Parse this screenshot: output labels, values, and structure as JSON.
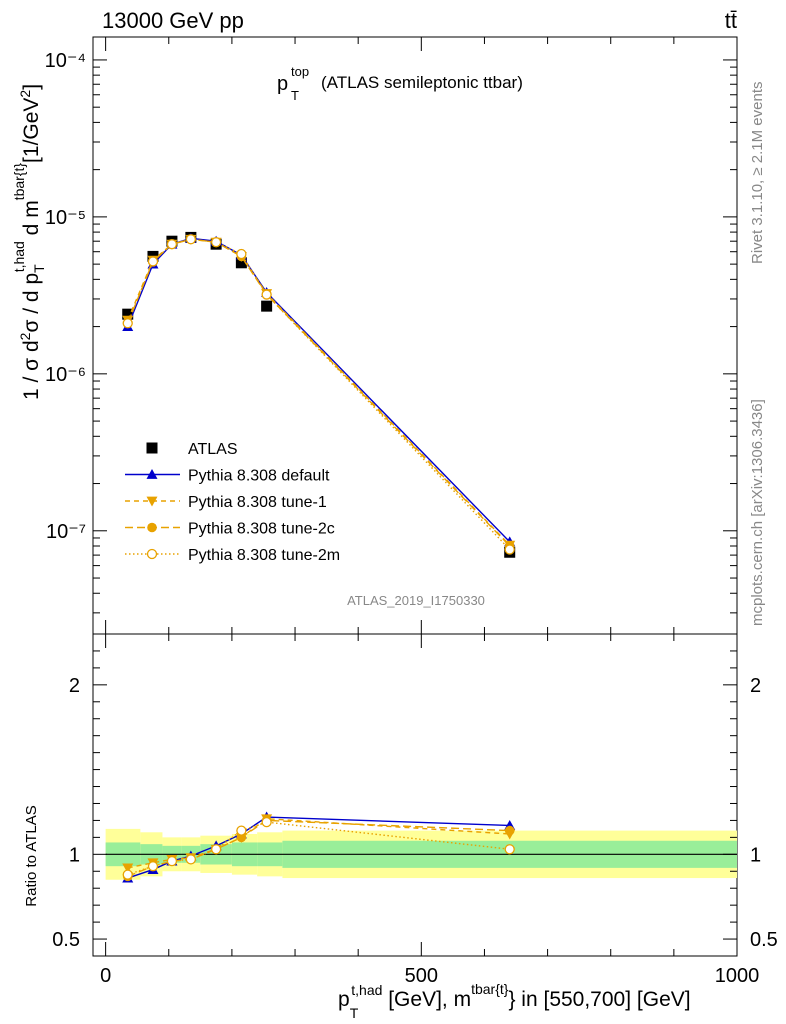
{
  "header": {
    "left": "13000 GeV pp",
    "right": "tt̄"
  },
  "side": {
    "rivet": "Rivet 3.1.10, ≥ 2.1M events",
    "mcplots": "mcplots.cern.ch [arXiv:1306.3436]"
  },
  "plot_title": {
    "base": "p",
    "sup": "top",
    "sub": "T",
    "rest": "(ATLAS semileptonic ttbar)"
  },
  "watermark": "ATLAS_2019_I1750330",
  "ylabel_top": "1 / σ d²σ / d p_T^{t,had} d m^{tbar{t}} [1/GeV²]",
  "ylabel_bottom": "Ratio to ATLAS",
  "xlabel": "p_T^{t,had} [GeV], m^{tbar{t}} in [550,700] [GeV]",
  "colors": {
    "data": "#000000",
    "default": "#0000cc",
    "tune": "#e8a200",
    "band_inner": "#99ee99",
    "band_outer": "#ffff99"
  },
  "chart_data": [
    {
      "type": "line",
      "yscale": "log",
      "xlim": [
        -20,
        1000
      ],
      "ylim": [
        2.2e-08,
        0.00014
      ],
      "y_tick_labels": [
        "10⁻⁷",
        "10⁻⁶",
        "10⁻⁵",
        "10⁻⁴"
      ],
      "x": [
        35,
        75,
        105,
        135,
        175,
        215,
        255,
        640
      ],
      "series": [
        {
          "name": "ATLAS",
          "marker": "square",
          "values": [
            2.4e-06,
            5.6e-06,
            7e-06,
            7.4e-06,
            6.7e-06,
            5.1e-06,
            2.7e-06,
            7.3e-08
          ]
        },
        {
          "name": "Pythia 8.308 default",
          "marker": "triangle-up",
          "values": [
            2e-06,
            5e-06,
            6.7e-06,
            7.3e-06,
            7e-06,
            5.7e-06,
            3.3e-06,
            8.5e-08
          ]
        },
        {
          "name": "Pythia 8.308 tune-1",
          "marker": "triangle-down",
          "values": [
            2.2e-06,
            5.3e-06,
            6.7e-06,
            7.2e-06,
            6.9e-06,
            5.6e-06,
            3.25e-06,
            8.1e-08
          ]
        },
        {
          "name": "Pythia 8.308 tune-2c",
          "marker": "circle",
          "values": [
            2.1e-06,
            5.2e-06,
            6.7e-06,
            7.2e-06,
            6.9e-06,
            5.6e-06,
            3.2e-06,
            8e-08
          ]
        },
        {
          "name": "Pythia 8.308 tune-2m",
          "marker": "circle-open",
          "values": [
            2.1e-06,
            5.2e-06,
            6.7e-06,
            7.2e-06,
            6.9e-06,
            5.8e-06,
            3.2e-06,
            7.6e-08
          ]
        }
      ]
    },
    {
      "type": "line",
      "xlim": [
        -20,
        1000
      ],
      "ylim": [
        0.4,
        2.3
      ],
      "y_tick_labels": [
        "0.5",
        "1",
        "2"
      ],
      "x_tick_labels": [
        "0",
        "500",
        "1000"
      ],
      "x": [
        35,
        75,
        105,
        135,
        175,
        215,
        255,
        640
      ],
      "band_edges": [
        0,
        55,
        90,
        120,
        150,
        200,
        240,
        280,
        1000
      ],
      "band_inner": [
        0.07,
        0.06,
        0.05,
        0.05,
        0.06,
        0.07,
        0.07,
        0.08
      ],
      "band_outer": [
        0.15,
        0.13,
        0.1,
        0.1,
        0.11,
        0.12,
        0.13,
        0.14
      ],
      "series": [
        {
          "name": "Pythia 8.308 default",
          "values": [
            0.86,
            0.91,
            0.96,
            0.99,
            1.05,
            1.12,
            1.22,
            1.17
          ]
        },
        {
          "name": "Pythia 8.308 tune-1",
          "values": [
            0.92,
            0.95,
            0.97,
            0.98,
            1.03,
            1.1,
            1.21,
            1.12
          ]
        },
        {
          "name": "Pythia 8.308 tune-2c",
          "values": [
            0.87,
            0.93,
            0.96,
            0.97,
            1.03,
            1.1,
            1.2,
            1.14
          ]
        },
        {
          "name": "Pythia 8.308 tune-2m",
          "values": [
            0.88,
            0.93,
            0.96,
            0.97,
            1.03,
            1.14,
            1.19,
            1.03
          ]
        }
      ]
    }
  ]
}
